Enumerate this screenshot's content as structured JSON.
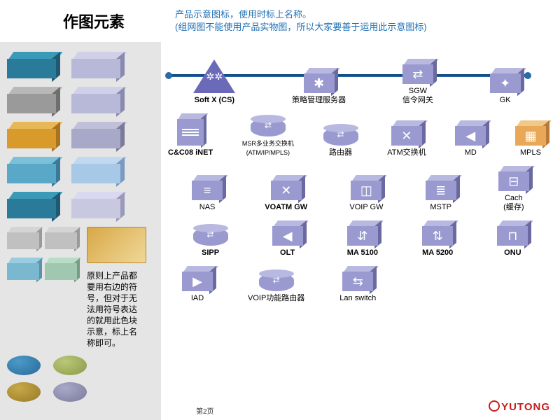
{
  "title": "作图元素",
  "subtitle_l1": "产品示意图标，使用时标上名称。",
  "subtitle_l2": "(组网图不能使用产品实物图，所以大家要善于运用此示意图标)",
  "sidebar_note": "原则上产品都要用右边的符号，但对于无法用符号表达的就用此色块示意，标上名称即可。",
  "page_num": "第2页",
  "logo_text": "YUTONG",
  "swatches_left": [
    {
      "front": "#2a7a9a",
      "top": "#3a9ab8",
      "side": "#1e5a72"
    },
    {
      "front": "#9a9a9a",
      "top": "#b8b8b8",
      "side": "#6e6e6e"
    },
    {
      "front": "#d89a2a",
      "top": "#e8b858",
      "side": "#a8721e"
    },
    {
      "front": "#5aa8c8",
      "top": "#7ac0d8",
      "side": "#3a7a98"
    },
    {
      "front": "#2a7a9a",
      "top": "#3a9ab8",
      "side": "#1e5a72"
    }
  ],
  "swatches_right": [
    {
      "front": "#b8b8d8",
      "top": "#d0d0e8",
      "side": "#8a8ab0"
    },
    {
      "front": "#b8b8d8",
      "top": "#d0d0e8",
      "side": "#8a8ab0"
    },
    {
      "front": "#a8a8c8",
      "top": "#c0c0d8",
      "side": "#7a7a9a"
    },
    {
      "front": "#a8c8e8",
      "top": "#c0d8f0",
      "side": "#7a9ac0"
    },
    {
      "front": "#c8c8e0",
      "top": "#d8d8f0",
      "side": "#9a9ab8"
    }
  ],
  "small_left": [
    {
      "front": "#c0c0c0",
      "top": "#d4d4d4",
      "side": "#9a9a9a"
    },
    {
      "front": "#7ab8d0",
      "top": "#98cce0",
      "side": "#5a92a8"
    }
  ],
  "small_right": [
    {
      "front": "#c0c0c0",
      "top": "#d4d4d4",
      "side": "#9a9a9a"
    },
    {
      "front": "#a0c8b0",
      "top": "#b8dcc4",
      "side": "#7a9a88"
    }
  ],
  "flat": {
    "fill": "#d8a848",
    "border": "#b88828"
  },
  "ellipses": [
    {
      "fill": "#4a9ac8",
      "shade": "#2a6a98"
    },
    {
      "fill": "#c8a848",
      "shade": "#987a28"
    },
    {
      "fill": "#b8c878",
      "shade": "#8a9a48"
    },
    {
      "fill": "#a8a8c8",
      "shade": "#7a7a9a"
    }
  ],
  "icon_style": {
    "fill": "#9a9ad0",
    "top": "#b8b8e0",
    "side": "#6a6aa0",
    "glyph": "#ffffff"
  },
  "softx": {
    "fill": "#6a6ab8",
    "label": "Soft X (CS)"
  },
  "row1": [
    {
      "label": "策略管理服务器",
      "glyph": "✱"
    },
    {
      "label": "SGW\n信令网关",
      "glyph": "⇄"
    },
    {
      "label": "GK",
      "glyph": "✦"
    }
  ],
  "row2": [
    {
      "label": "C&C08 iNET",
      "tall": true,
      "bold": true
    },
    {
      "label": "MSR多业务交换机\n(ATM/IP/MPLS)",
      "cyl": true,
      "small": true
    },
    {
      "label": "路由器",
      "cyl": true
    },
    {
      "label": "ATM交换机",
      "glyph": "✕"
    },
    {
      "label": "MD",
      "glyph": "◀"
    },
    {
      "label": "MPLS",
      "glyph": "▦",
      "fill": "#e8a858"
    }
  ],
  "row3": [
    {
      "label": "NAS",
      "glyph": "≡"
    },
    {
      "label": "VOATM GW",
      "glyph": "✕",
      "bold": true
    },
    {
      "label": "VOIP GW",
      "glyph": "◫"
    },
    {
      "label": "MSTP",
      "glyph": "≣"
    },
    {
      "label": "Cach\n(缓存)",
      "glyph": "⊟"
    }
  ],
  "row4": [
    {
      "label": "SIPP",
      "cyl": true,
      "bold": true
    },
    {
      "label": "OLT",
      "glyph": "◀",
      "bold": true
    },
    {
      "label": "MA 5100",
      "glyph": "⇵",
      "bold": true
    },
    {
      "label": "MA 5200",
      "glyph": "⇅",
      "bold": true
    },
    {
      "label": "ONU",
      "glyph": "⊓",
      "bold": true
    }
  ],
  "row5": [
    {
      "label": "IAD",
      "glyph": "▶"
    },
    {
      "label": "VOIP功能路由器",
      "cyl": true
    },
    {
      "label": "Lan switch",
      "glyph": "⇆"
    }
  ]
}
